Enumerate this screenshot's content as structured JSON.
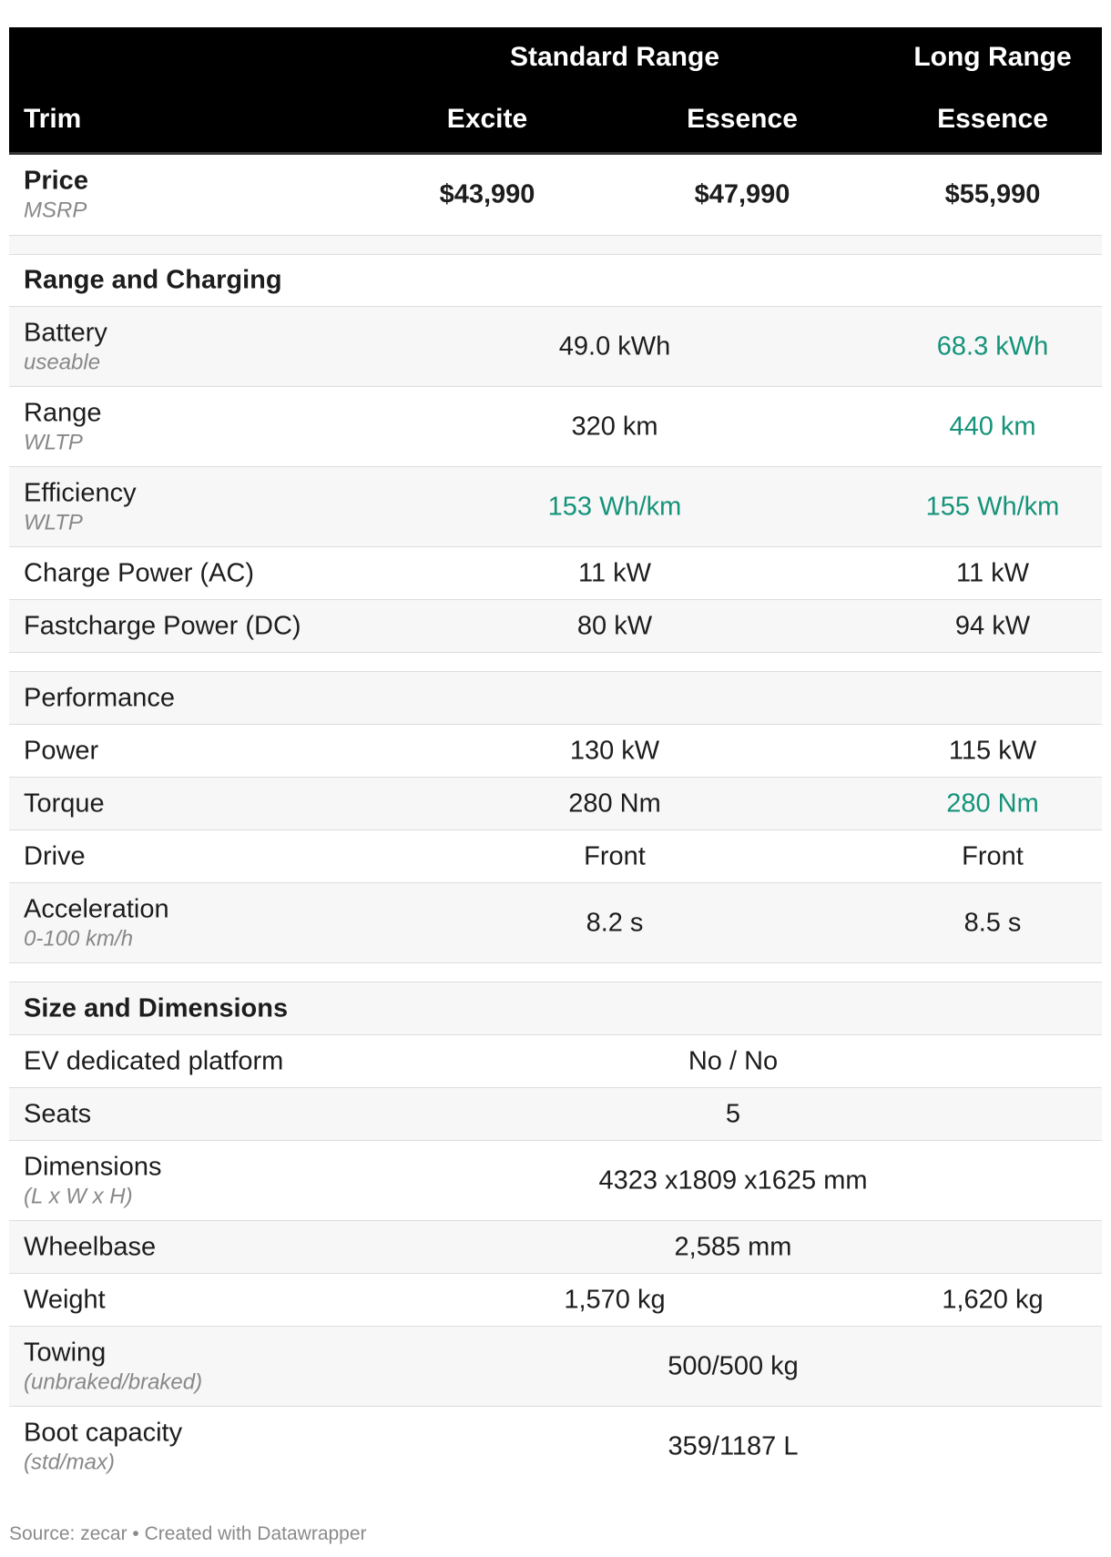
{
  "header": {
    "row_label": "Trim",
    "groups": [
      "Standard Range",
      "Long Range"
    ],
    "trims": [
      "Excite",
      "Essence",
      "Essence"
    ]
  },
  "rows": [
    {
      "label": "Price",
      "note": "MSRP",
      "cells": [
        "$43,990",
        "$47,990",
        "$55,990"
      ]
    },
    {
      "label": "Range and Charging"
    },
    {
      "label": "Battery",
      "note": "useable",
      "standard": "49.0 kWh",
      "long": "68.3 kWh"
    },
    {
      "label": "Range",
      "note": "WLTP",
      "standard": "320 km",
      "long": "440 km"
    },
    {
      "label": "Efficiency",
      "note": "WLTP",
      "standard": "153 Wh/km",
      "long": "155 Wh/km"
    },
    {
      "label": "Charge Power (AC)",
      "standard": "11 kW",
      "long": "11 kW"
    },
    {
      "label": "Fastcharge Power (DC)",
      "standard": "80 kW",
      "long": "94 kW"
    },
    {
      "label": "Performance"
    },
    {
      "label": "Power",
      "standard": "130 kW",
      "long": "115 kW"
    },
    {
      "label": "Torque",
      "standard": "280 Nm",
      "long": "280 Nm"
    },
    {
      "label": "Drive",
      "standard": "Front",
      "long": "Front"
    },
    {
      "label": "Acceleration",
      "note": "0-100 km/h",
      "standard": "8.2 s",
      "long": "8.5 s"
    },
    {
      "label": "Size and Dimensions"
    },
    {
      "label": "EV dedicated platform",
      "all": "No / No"
    },
    {
      "label": "Seats",
      "all": "5"
    },
    {
      "label": "Dimensions",
      "note": "(L x W x H)",
      "all": "4323 x1809 x1625 mm"
    },
    {
      "label": "Wheelbase",
      "all": "2,585 mm"
    },
    {
      "label": "Weight",
      "standard": "1,570 kg",
      "long": "1,620 kg"
    },
    {
      "label": "Towing",
      "note": "(unbraked/braked)",
      "all": "500/500 kg"
    },
    {
      "label": "Boot capacity",
      "note": "(std/max)",
      "all": "359/1187 L"
    }
  ],
  "footer": "Source: zecar • Created with Datawrapper",
  "colors": {
    "header_bg": "#000000",
    "highlight": "#15937a",
    "alt_row": "#f7f7f7"
  },
  "chart_data": {
    "type": "table",
    "columns": [
      "Trim",
      "Standard Range Excite",
      "Standard Range Essence",
      "Long Range Essence"
    ],
    "rows": [
      [
        "Price (MSRP)",
        "$43,990",
        "$47,990",
        "$55,990"
      ],
      [
        "Battery (useable)",
        "49.0 kWh",
        "49.0 kWh",
        "68.3 kWh"
      ],
      [
        "Range (WLTP)",
        "320 km",
        "320 km",
        "440 km"
      ],
      [
        "Efficiency (WLTP)",
        "153 Wh/km",
        "153 Wh/km",
        "155 Wh/km"
      ],
      [
        "Charge Power (AC)",
        "11 kW",
        "11 kW",
        "11 kW"
      ],
      [
        "Fastcharge Power (DC)",
        "80 kW",
        "80 kW",
        "94 kW"
      ],
      [
        "Power",
        "130 kW",
        "130 kW",
        "115 kW"
      ],
      [
        "Torque",
        "280 Nm",
        "280 Nm",
        "280 Nm"
      ],
      [
        "Drive",
        "Front",
        "Front",
        "Front"
      ],
      [
        "Acceleration (0-100 km/h)",
        "8.2 s",
        "8.2 s",
        "8.5 s"
      ],
      [
        "EV dedicated platform",
        "No / No",
        "No / No",
        "No / No"
      ],
      [
        "Seats",
        "5",
        "5",
        "5"
      ],
      [
        "Dimensions (L x W x H)",
        "4323 x1809 x1625 mm",
        "4323 x1809 x1625 mm",
        "4323 x1809 x1625 mm"
      ],
      [
        "Wheelbase",
        "2,585 mm",
        "2,585 mm",
        "2,585 mm"
      ],
      [
        "Weight",
        "1,570 kg",
        "1,570 kg",
        "1,620 kg"
      ],
      [
        "Towing (unbraked/braked)",
        "500/500 kg",
        "500/500 kg",
        "500/500 kg"
      ],
      [
        "Boot capacity (std/max)",
        "359/1187 L",
        "359/1187 L",
        "359/1187 L"
      ]
    ]
  }
}
